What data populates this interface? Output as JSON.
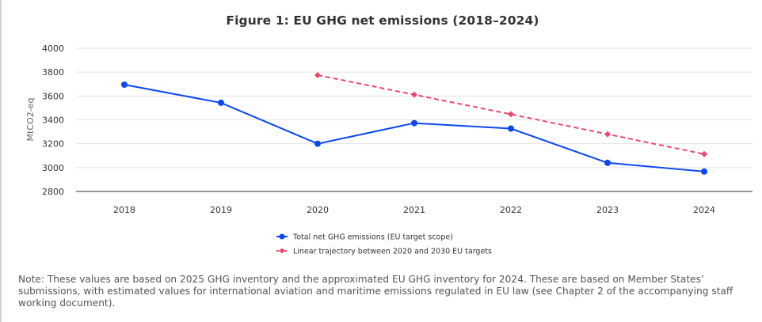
{
  "chart_data": {
    "type": "line",
    "title": "Figure 1: EU GHG net emissions (2018–2024)",
    "xlabel": "",
    "ylabel": "MtCO2-eq",
    "categories": [
      "2018",
      "2019",
      "2020",
      "2021",
      "2022",
      "2023",
      "2024"
    ],
    "ylim": [
      2800,
      4000
    ],
    "yticks": [
      2800,
      3000,
      3200,
      3400,
      3600,
      3800,
      4000
    ],
    "grid": true,
    "legend_position": "bottom-center",
    "series": [
      {
        "name": "Total net GHG emissions (EU target scope)",
        "color": "#0a47f5",
        "style": "solid",
        "marker": "circle",
        "values": [
          3695,
          3543,
          3200,
          3373,
          3327,
          3040,
          2967
        ]
      },
      {
        "name": "Linear trajectory between 2020 and 2030 EU targets",
        "color": "#f0476a",
        "style": "dashed",
        "marker": "diamond",
        "values": [
          null,
          null,
          3775,
          3611,
          3447,
          3280,
          3113
        ]
      }
    ]
  },
  "note": "Note: These values are based on 2025 GHG inventory and the approximated EU GHG inventory for 2024. These are based on Member States’ submissions, with estimated values for international aviation and maritime emissions regulated in EU law (see Chapter 2 of the accompanying staff working document)."
}
